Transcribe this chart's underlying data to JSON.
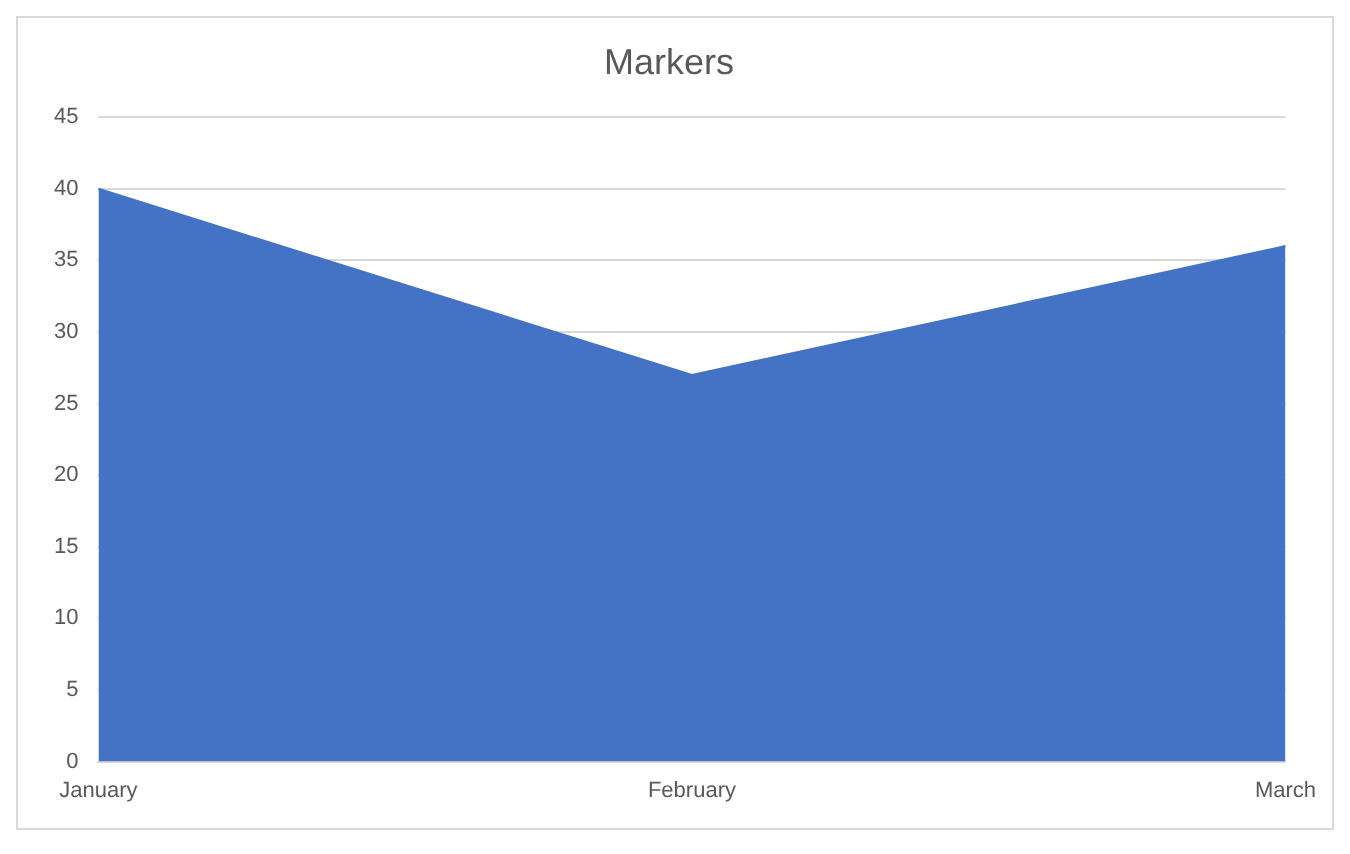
{
  "chart_data": {
    "type": "area",
    "title": "Markers",
    "categories": [
      "January",
      "February",
      "March"
    ],
    "values": [
      40,
      27,
      36
    ],
    "color": "#4472c4",
    "ylim": [
      0,
      45
    ],
    "yticks": [
      0,
      5,
      10,
      15,
      20,
      25,
      30,
      35,
      40,
      45
    ],
    "grid": "y"
  }
}
